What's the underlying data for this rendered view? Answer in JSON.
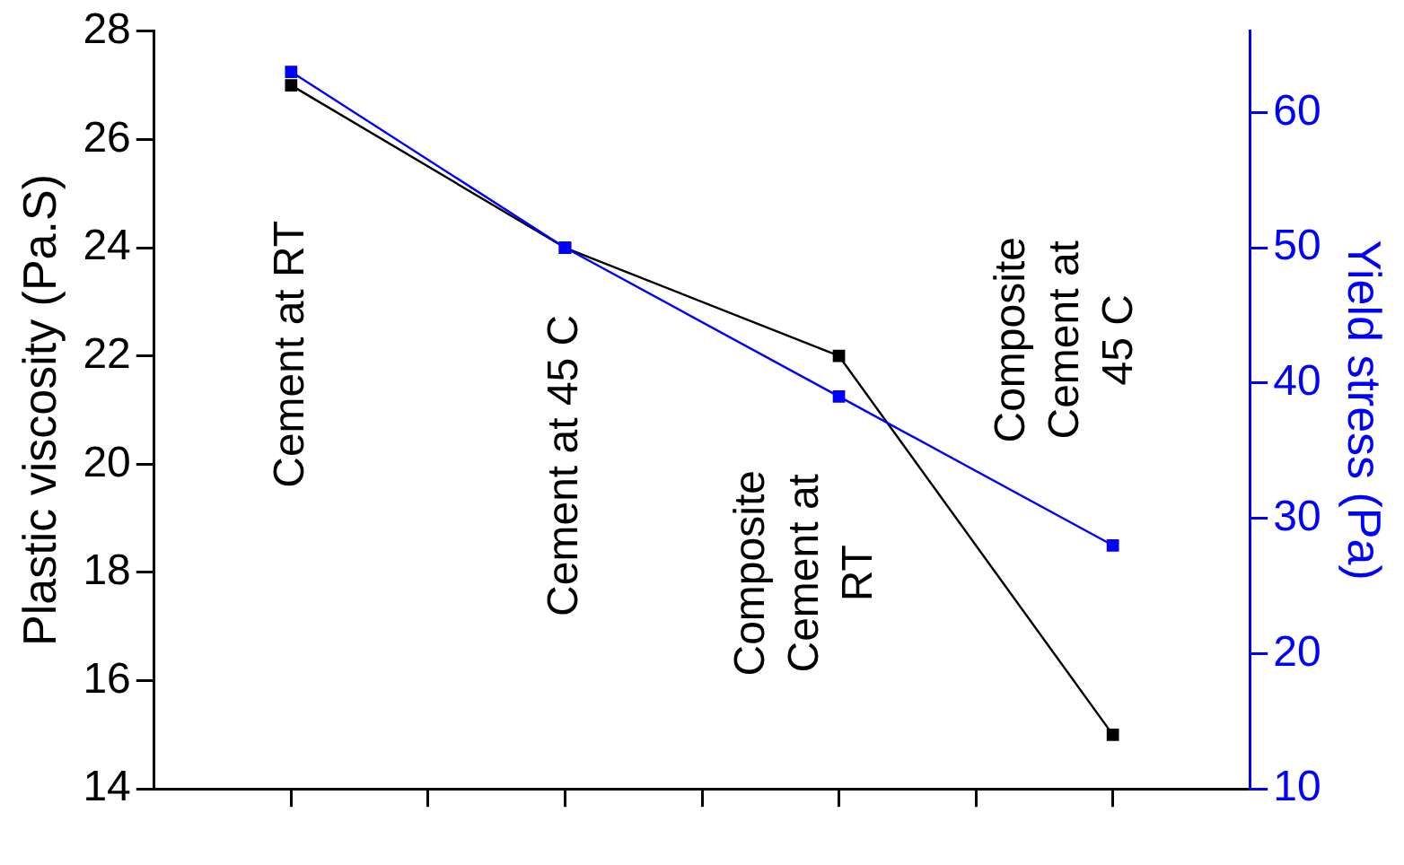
{
  "chart_data": {
    "type": "line",
    "ylabel": "Plastic viscosity (Pa.S)",
    "y2label": "Yield stress (Pa)",
    "categories": [
      null,
      null,
      null,
      null
    ],
    "ylim": [
      14,
      28
    ],
    "yticks": [
      14,
      16,
      18,
      20,
      22,
      24,
      26,
      28
    ],
    "y2lim": [
      10,
      66
    ],
    "y2ticks": [
      10,
      20,
      30,
      40,
      50,
      60
    ],
    "series": [
      {
        "color": "#000000",
        "values": [
          27,
          24,
          22,
          15
        ]
      },
      {
        "color": "#0000ff",
        "values": [
          63,
          50,
          39,
          28
        ],
        "axis": "y2"
      }
    ],
    "marker": "square",
    "line_style": "solid",
    "grid": false,
    "legend": false,
    "annotations": [
      "Cement at RT",
      "Cement at 45 C",
      "Composite\nCement at\nRT",
      "Composite\nCement at\n45 C"
    ]
  }
}
